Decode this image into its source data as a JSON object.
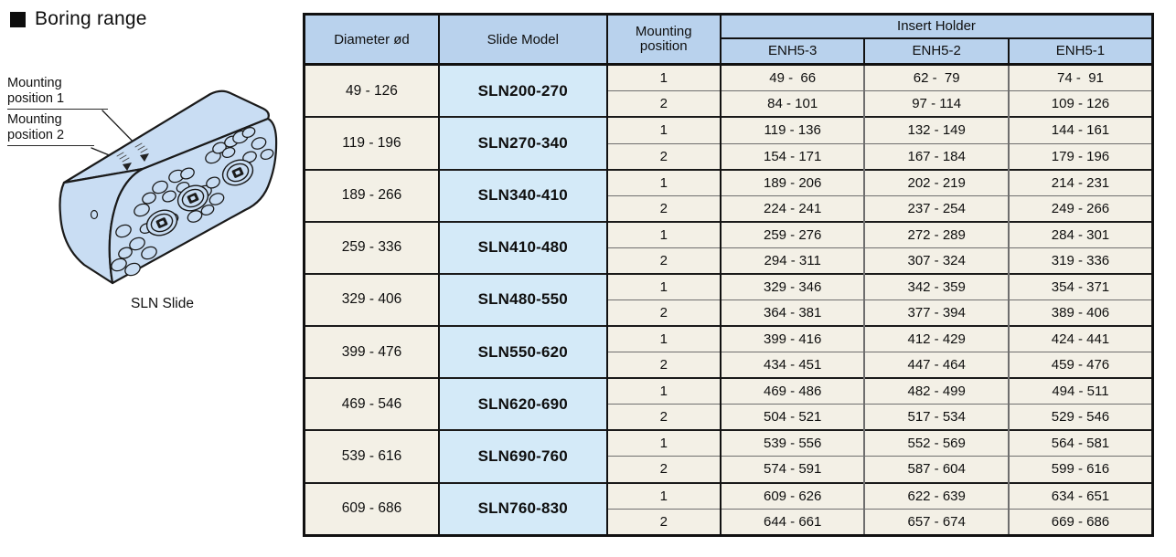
{
  "left": {
    "title": "Boring range",
    "mount1": "Mounting\nposition 1",
    "mount2": "Mounting\nposition 2",
    "caption": "SLN Slide"
  },
  "colors": {
    "header_blue": "#b9d2ed",
    "model_blue": "#d4eaf8",
    "row_beige": "#f3f0e6",
    "slide_body_blue": "#c9ddf3",
    "line_black": "#111111",
    "line_gray": "#6e6e6e"
  },
  "table": {
    "headers": {
      "diameter": "Diameter ød",
      "model": "Slide Model",
      "mounting": "Mounting\nposition",
      "insert_holder": "Insert Holder",
      "enh": [
        "ENH5-3",
        "ENH5-2",
        "ENH5-1"
      ]
    },
    "groups": [
      {
        "diameter": "49 - 126",
        "model": "SLN200-270",
        "rows": [
          {
            "position": "1",
            "enh5_3": "49 -  66",
            "enh5_2": "62 -  79",
            "enh5_1": "74 -  91"
          },
          {
            "position": "2",
            "enh5_3": "84 - 101",
            "enh5_2": "97 - 114",
            "enh5_1": "109 - 126"
          }
        ]
      },
      {
        "diameter": "119 - 196",
        "model": "SLN270-340",
        "rows": [
          {
            "position": "1",
            "enh5_3": "119 - 136",
            "enh5_2": "132 - 149",
            "enh5_1": "144 - 161"
          },
          {
            "position": "2",
            "enh5_3": "154 - 171",
            "enh5_2": "167 - 184",
            "enh5_1": "179 - 196"
          }
        ]
      },
      {
        "diameter": "189 - 266",
        "model": "SLN340-410",
        "rows": [
          {
            "position": "1",
            "enh5_3": "189 - 206",
            "enh5_2": "202 - 219",
            "enh5_1": "214 - 231"
          },
          {
            "position": "2",
            "enh5_3": "224 - 241",
            "enh5_2": "237 - 254",
            "enh5_1": "249 - 266"
          }
        ]
      },
      {
        "diameter": "259 - 336",
        "model": "SLN410-480",
        "rows": [
          {
            "position": "1",
            "enh5_3": "259 - 276",
            "enh5_2": "272 - 289",
            "enh5_1": "284 - 301"
          },
          {
            "position": "2",
            "enh5_3": "294 - 311",
            "enh5_2": "307 - 324",
            "enh5_1": "319 - 336"
          }
        ]
      },
      {
        "diameter": "329 - 406",
        "model": "SLN480-550",
        "rows": [
          {
            "position": "1",
            "enh5_3": "329 - 346",
            "enh5_2": "342 - 359",
            "enh5_1": "354 - 371"
          },
          {
            "position": "2",
            "enh5_3": "364 - 381",
            "enh5_2": "377 - 394",
            "enh5_1": "389 - 406"
          }
        ]
      },
      {
        "diameter": "399 - 476",
        "model": "SLN550-620",
        "rows": [
          {
            "position": "1",
            "enh5_3": "399 - 416",
            "enh5_2": "412 - 429",
            "enh5_1": "424 - 441"
          },
          {
            "position": "2",
            "enh5_3": "434 - 451",
            "enh5_2": "447 - 464",
            "enh5_1": "459 - 476"
          }
        ]
      },
      {
        "diameter": "469 - 546",
        "model": "SLN620-690",
        "rows": [
          {
            "position": "1",
            "enh5_3": "469 - 486",
            "enh5_2": "482 - 499",
            "enh5_1": "494 - 511"
          },
          {
            "position": "2",
            "enh5_3": "504 - 521",
            "enh5_2": "517 - 534",
            "enh5_1": "529 - 546"
          }
        ]
      },
      {
        "diameter": "539 - 616",
        "model": "SLN690-760",
        "rows": [
          {
            "position": "1",
            "enh5_3": "539 - 556",
            "enh5_2": "552 - 569",
            "enh5_1": "564 - 581"
          },
          {
            "position": "2",
            "enh5_3": "574 - 591",
            "enh5_2": "587 - 604",
            "enh5_1": "599 - 616"
          }
        ]
      },
      {
        "diameter": "609 - 686",
        "model": "SLN760-830",
        "rows": [
          {
            "position": "1",
            "enh5_3": "609 - 626",
            "enh5_2": "622 - 639",
            "enh5_1": "634 - 651"
          },
          {
            "position": "2",
            "enh5_3": "644 - 661",
            "enh5_2": "657 - 674",
            "enh5_1": "669 - 686"
          }
        ]
      }
    ]
  }
}
